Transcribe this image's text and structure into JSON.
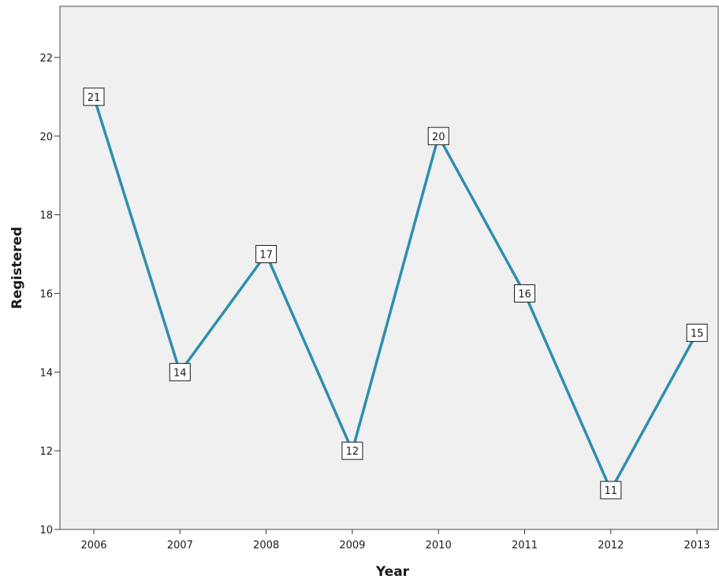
{
  "chart_data": {
    "type": "line",
    "xlabel": "Year",
    "ylabel": "Registered",
    "categories": [
      "2006",
      "2007",
      "2008",
      "2009",
      "2010",
      "2011",
      "2012",
      "2013"
    ],
    "series": [
      {
        "values": [
          21,
          14,
          17,
          12,
          20,
          16,
          11,
          15
        ]
      }
    ],
    "yticks": [
      "10",
      "12",
      "14",
      "16",
      "18",
      "20",
      "22"
    ],
    "ylim": [
      10,
      23.3
    ],
    "data_labels": [
      "21",
      "14",
      "17",
      "12",
      "20",
      "16",
      "11",
      "15"
    ],
    "grid": false,
    "line_color": "#2e8fae",
    "plot_background": "#f0f0f0"
  }
}
